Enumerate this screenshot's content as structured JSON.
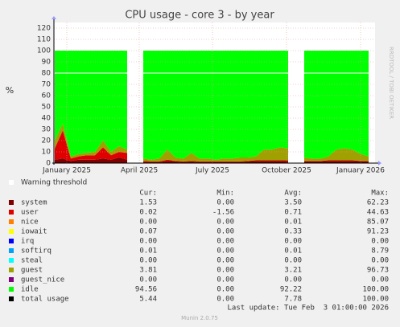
{
  "chart_data": {
    "type": "area",
    "title": "CPU usage - core 3 - by year",
    "ylabel": "%",
    "side_text": "RRDTOOL / TOBI OETIKER",
    "x": [
      -15,
      -5,
      5,
      15,
      25,
      35,
      45,
      55,
      65,
      75,
      85,
      95,
      105,
      115,
      125,
      135,
      145,
      155,
      165,
      175,
      185,
      195,
      205,
      215,
      225,
      235,
      245,
      255,
      265,
      275,
      285,
      295,
      305,
      315,
      325,
      335,
      345,
      355,
      365,
      375
    ],
    "xlim": [
      -16,
      383
    ],
    "xticks": [
      {
        "value": 0,
        "label": "January 2025"
      },
      {
        "value": 90,
        "label": "April 2025"
      },
      {
        "value": 181,
        "label": "July 2025"
      },
      {
        "value": 273,
        "label": "October 2025"
      },
      {
        "value": 365,
        "label": "January 2026"
      }
    ],
    "ylim": [
      0,
      125
    ],
    "yticks": [
      0,
      10,
      20,
      30,
      40,
      50,
      60,
      70,
      80,
      90,
      100,
      110,
      120
    ],
    "grid": true,
    "warning_threshold": {
      "label": "Warning threshold",
      "value": 80
    },
    "series": [
      {
        "name": "system",
        "color": "#7e0000",
        "values": [
          3,
          4,
          2,
          3,
          3,
          3,
          4,
          3,
          5,
          3,
          null,
          1,
          1,
          1,
          2,
          1.5,
          1,
          1.5,
          1,
          1,
          1,
          1,
          1,
          1,
          1.5,
          2,
          2,
          2,
          2,
          2,
          null,
          1.5,
          1.5,
          1.5,
          2,
          2,
          2,
          2,
          1.5,
          1.5
        ]
      },
      {
        "name": "user",
        "color": "#e00000",
        "values": [
          10,
          25,
          2,
          3,
          4,
          4,
          10,
          4,
          5,
          6,
          null,
          1,
          0.5,
          0.5,
          1,
          0.5,
          0.5,
          0.5,
          0.5,
          0.5,
          0.5,
          0.5,
          0.5,
          0.5,
          0.5,
          0.5,
          0.5,
          0.5,
          0.5,
          0.5,
          null,
          0.5,
          0.5,
          0.5,
          0.5,
          0.5,
          0.5,
          0.5,
          0.5,
          0.5
        ]
      },
      {
        "name": "guest",
        "color": "#a0a000",
        "values": [
          7,
          6,
          2,
          2,
          2,
          3,
          6,
          3,
          5,
          3,
          null,
          2,
          1.5,
          2.5,
          9,
          3,
          2.5,
          7,
          2.5,
          2.5,
          1.5,
          2.5,
          2.5,
          3.5,
          3,
          3.5,
          9.5,
          9.5,
          11.5,
          10.5,
          null,
          3,
          2,
          2,
          3.5,
          9.5,
          10.5,
          9.5,
          6,
          4
        ]
      },
      {
        "name": "idle",
        "color": "#00ff00",
        "values": [
          80,
          65,
          94,
          92,
          91,
          90,
          80,
          90,
          85,
          88,
          null,
          96,
          97,
          96,
          88,
          95,
          96,
          91,
          96,
          96,
          97,
          96,
          96,
          95,
          95,
          94,
          88,
          88,
          86,
          87,
          null,
          95,
          96,
          96,
          94,
          88,
          87,
          88,
          92,
          94
        ]
      }
    ]
  },
  "legend": {
    "headers": [
      "Cur:",
      "Min:",
      "Avg:",
      "Max:"
    ],
    "rows": [
      {
        "name": "system",
        "color": "#7e0000",
        "cur": "1.53",
        "min": "0.00",
        "avg": "3.50",
        "max": "62.23"
      },
      {
        "name": "user",
        "color": "#e00000",
        "cur": "0.02",
        "min": "-1.56",
        "avg": "0.71",
        "max": "44.63"
      },
      {
        "name": "nice",
        "color": "#ff8000",
        "cur": "0.00",
        "min": "0.00",
        "avg": "0.01",
        "max": "85.07"
      },
      {
        "name": "iowait",
        "color": "#ffff00",
        "cur": "0.07",
        "min": "0.00",
        "avg": "0.33",
        "max": "91.23"
      },
      {
        "name": "irq",
        "color": "#0000ff",
        "cur": "0.00",
        "min": "0.00",
        "avg": "0.00",
        "max": "0.00"
      },
      {
        "name": "softirq",
        "color": "#00a0ff",
        "cur": "0.01",
        "min": "0.00",
        "avg": "0.01",
        "max": "8.79"
      },
      {
        "name": "steal",
        "color": "#00ffff",
        "cur": "0.00",
        "min": "0.00",
        "avg": "0.00",
        "max": "0.00"
      },
      {
        "name": "guest",
        "color": "#a0a000",
        "cur": "3.81",
        "min": "0.00",
        "avg": "3.21",
        "max": "96.73"
      },
      {
        "name": "guest_nice",
        "color": "#800080",
        "cur": "0.00",
        "min": "0.00",
        "avg": "0.00",
        "max": "0.00"
      },
      {
        "name": "idle",
        "color": "#00ff00",
        "cur": "94.56",
        "min": "0.00",
        "avg": "92.22",
        "max": "100.00"
      },
      {
        "name": "total usage",
        "color": "#000000",
        "cur": "5.44",
        "min": "0.00",
        "avg": "7.78",
        "max": "100.00"
      }
    ]
  },
  "footer": {
    "last_update": "Last update: Tue Feb  3 01:00:00 2026",
    "version": "Munin 2.0.75"
  }
}
